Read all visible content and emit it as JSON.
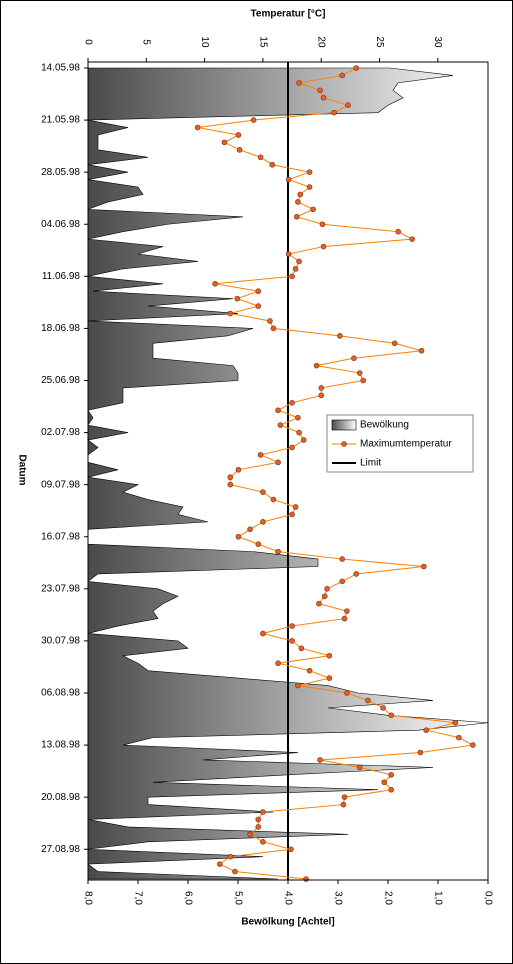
{
  "chart_data": {
    "type": "line",
    "ylabel": "Temperatur [°C]",
    "y2label": "Bewölkung [Achtel]",
    "xlabel": "Datum",
    "x": [
      "14.05.98",
      "15.05.98",
      "16.05.98",
      "17.05.98",
      "18.05.98",
      "19.05.98",
      "20.05.98",
      "21.05.98",
      "22.05.98",
      "23.05.98",
      "24.05.98",
      "25.05.98",
      "26.05.98",
      "27.05.98",
      "28.05.98",
      "29.05.98",
      "30.05.98",
      "31.05.98",
      "01.06.98",
      "02.06.98",
      "03.06.98",
      "04.06.98",
      "05.06.98",
      "06.06.98",
      "07.06.98",
      "08.06.98",
      "09.06.98",
      "10.06.98",
      "11.06.98",
      "12.06.98",
      "13.06.98",
      "14.06.98",
      "15.06.98",
      "16.06.98",
      "17.06.98",
      "18.06.98",
      "19.06.98",
      "20.06.98",
      "21.06.98",
      "22.06.98",
      "23.06.98",
      "24.06.98",
      "25.06.98",
      "26.06.98",
      "27.06.98",
      "28.06.98",
      "29.06.98",
      "30.06.98",
      "01.07.98",
      "02.07.98",
      "03.07.98",
      "04.07.98",
      "05.07.98",
      "06.07.98",
      "07.07.98",
      "08.07.98",
      "09.07.98",
      "10.07.98",
      "11.07.98",
      "12.07.98",
      "13.07.98",
      "14.07.98",
      "15.07.98",
      "16.07.98",
      "17.07.98",
      "18.07.98",
      "19.07.98",
      "20.07.98",
      "21.07.98",
      "22.07.98",
      "23.07.98",
      "24.07.98",
      "25.07.98",
      "26.07.98",
      "27.07.98",
      "28.07.98",
      "29.07.98",
      "30.07.98",
      "31.07.98",
      "01.08.98",
      "02.08.98",
      "03.08.98",
      "04.08.98",
      "05.08.98",
      "06.08.98",
      "07.08.98",
      "08.08.98",
      "09.08.98",
      "10.08.98",
      "11.08.98",
      "12.08.98",
      "13.08.98",
      "14.08.98",
      "15.08.98",
      "16.08.98",
      "17.08.98",
      "18.08.98",
      "19.08.98",
      "20.08.98",
      "21.08.98",
      "22.08.98",
      "23.08.98",
      "24.08.98",
      "25.08.98",
      "26.08.98",
      "27.08.98",
      "28.08.98",
      "29.08.98",
      "30.08.98",
      "31.08.98"
    ],
    "xlim": [
      "14.05.98",
      "31.08.98"
    ],
    "xticks": [
      "14.05.98",
      "21.05.98",
      "28.05.98",
      "04.06.98",
      "11.06.98",
      "18.06.98",
      "25.06.98",
      "02.07.98",
      "09.07.98",
      "16.07.98",
      "23.07.98",
      "30.07.98",
      "06.08.98",
      "13.08.98",
      "20.08.98",
      "27.08.98"
    ],
    "ylim": [
      0,
      34.3
    ],
    "yticks": [
      0,
      5,
      10,
      15,
      20,
      25,
      30
    ],
    "y2lim": [
      8,
      0
    ],
    "y2ticks": [
      {
        "value": 8,
        "label": "8,0"
      },
      {
        "value": 7,
        "label": "7,0"
      },
      {
        "value": 6,
        "label": "6,0"
      },
      {
        "value": 5,
        "label": "5,0"
      },
      {
        "value": 4,
        "label": "4,0"
      },
      {
        "value": 3,
        "label": "3,0"
      },
      {
        "value": 2,
        "label": "2,0"
      },
      {
        "value": 1,
        "label": "1,0"
      },
      {
        "value": 0,
        "label": "0,0"
      }
    ],
    "series": [
      {
        "name": "Bewölkung",
        "color": "#555555",
        "axis": "y2",
        "values": [
          1.96,
          0.7,
          1.8,
          1.9,
          1.7,
          2.0,
          2.2,
          8,
          7.2,
          7.8,
          7.8,
          7.8,
          6.8,
          8,
          7.2,
          8,
          7.0,
          6.9,
          7.6,
          8,
          4.9,
          6.4,
          7.3,
          8,
          6.5,
          7.0,
          5.8,
          7.3,
          8,
          6.5,
          7.9,
          5.1,
          6.8,
          5.0,
          8,
          4.7,
          5.2,
          6.7,
          6.7,
          6.7,
          5.1,
          5.0,
          5.0,
          7.3,
          7.3,
          7.3,
          8,
          7.9,
          8,
          7.2,
          8,
          7.8,
          8,
          8,
          7.4,
          8,
          7.0,
          7.3,
          6.8,
          6.1,
          6.2,
          5.6,
          8,
          8,
          8,
          4.7,
          3.4,
          3.4,
          7.8,
          8,
          6.6,
          6.2,
          6.5,
          6.7,
          6.6,
          7.4,
          8,
          6.2,
          6.0,
          7.3,
          7.0,
          6.8,
          5.0,
          3.2,
          2.6,
          1.1,
          3.2,
          2.0,
          0.0,
          1.4,
          6.7,
          7.3,
          3.8,
          5.7,
          1.1,
          4.0,
          6.7,
          2.2,
          6.8,
          6.8,
          4.3,
          8,
          7.2,
          2.8,
          6.8,
          8,
          4.5,
          8,
          7.8,
          4.2
        ]
      },
      {
        "name": "Maximumtemperatur",
        "color": "#ff7f00",
        "values": [
          23.0,
          21.8,
          18.1,
          19.9,
          20.2,
          22.3,
          21.1,
          14.2,
          9.4,
          12.9,
          11.7,
          13.0,
          14.8,
          15.8,
          19.0,
          17.2,
          19.0,
          18.2,
          18.0,
          19.3,
          17.9,
          20.1,
          26.6,
          27.8,
          20.2,
          17.2,
          18.1,
          17.8,
          17.5,
          10.9,
          14.6,
          12.8,
          14.6,
          12.2,
          15.6,
          15.9,
          21.6,
          26.3,
          28.6,
          22.8,
          19.6,
          23.3,
          23.6,
          20.0,
          20.0,
          17.5,
          16.3,
          18.0,
          16.5,
          18.1,
          18.5,
          17.5,
          14.8,
          16.3,
          12.9,
          12.2,
          12.2,
          15.0,
          15.9,
          17.8,
          17.5,
          15.0,
          13.9,
          12.9,
          14.6,
          16.3,
          21.8,
          28.8,
          23.0,
          21.8,
          20.5,
          20.3,
          19.8,
          22.2,
          22.0,
          17.5,
          15.0,
          17.5,
          18.3,
          20.7,
          16.3,
          19.0,
          20.7,
          18.0,
          22.2,
          24.0,
          25.3,
          26.0,
          31.5,
          29.0,
          31.8,
          33.0,
          28.5,
          19.9,
          23.3,
          26.0,
          25.4,
          26.0,
          22.0,
          21.9,
          15.0,
          14.6,
          14.6,
          13.9,
          15.0,
          17.4,
          12.2,
          11.3,
          12.6,
          18.7
        ]
      }
    ],
    "limit": {
      "name": "Limit",
      "value": 4,
      "color": "#000000"
    },
    "legend": "right"
  }
}
